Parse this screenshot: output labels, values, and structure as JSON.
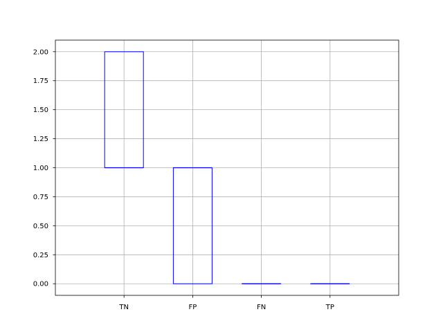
{
  "chart_data": {
    "type": "box",
    "categories": [
      "TN",
      "FP",
      "FN",
      "TP"
    ],
    "boxes": [
      {
        "category": "TN",
        "min": 1.0,
        "q1": 1.0,
        "median": 1.0,
        "q3": 2.0,
        "max": 2.0
      },
      {
        "category": "FP",
        "min": 0.0,
        "q1": 0.0,
        "median": 1.0,
        "q3": 1.0,
        "max": 1.0
      },
      {
        "category": "FN",
        "min": 0.0,
        "q1": 0.0,
        "median": 0.0,
        "q3": 0.0,
        "max": 0.0
      },
      {
        "category": "TP",
        "min": 0.0,
        "q1": 0.0,
        "median": 0.0,
        "q3": 0.0,
        "max": 0.0
      }
    ],
    "title": "",
    "xlabel": "",
    "ylabel": "",
    "ylim": [
      -0.1,
      2.1
    ],
    "yticks": [
      "0.00",
      "0.25",
      "0.50",
      "0.75",
      "1.00",
      "1.25",
      "1.50",
      "1.75",
      "2.00"
    ],
    "grid": true,
    "box_color": "#0000ff"
  }
}
